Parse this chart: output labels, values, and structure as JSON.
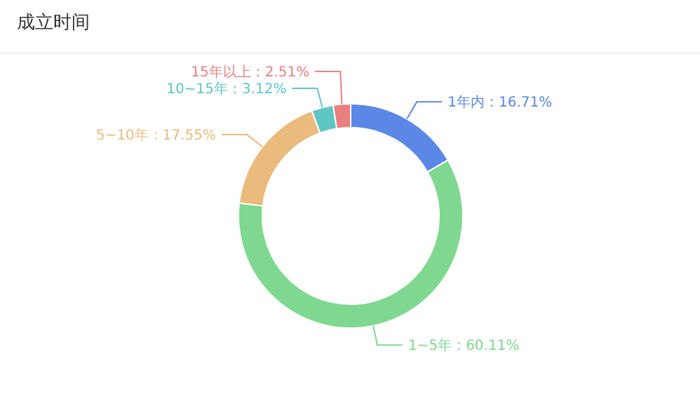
{
  "chart_data": {
    "type": "donut",
    "title": "成立时间",
    "categories": [
      "1年内",
      "1~5年",
      "5~10年",
      "10~15年",
      "15年以上"
    ],
    "values": [
      16.71,
      60.11,
      17.55,
      3.12,
      2.51
    ],
    "value_labels": [
      "16.71%",
      "60.11%",
      "17.55%",
      "3.12%",
      "2.51%"
    ],
    "colors": [
      "#5b87e6",
      "#7fd88f",
      "#ebbb7d",
      "#5fc6c4",
      "#e88080"
    ]
  }
}
